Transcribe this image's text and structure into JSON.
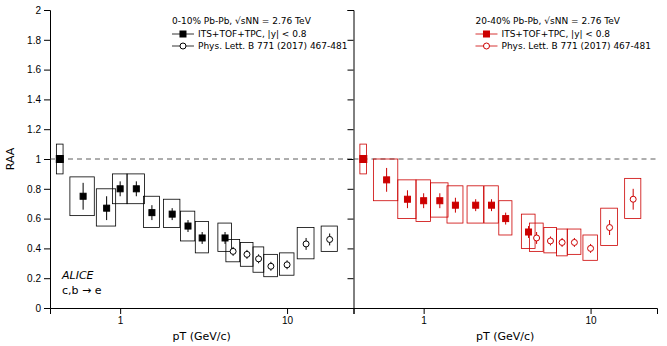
{
  "chart_data": [
    {
      "type": "scatter",
      "title": "0-10% Pb-Pb, √sNN = 2.76 TeV",
      "xlabel": "pT (GeV/c)",
      "ylabel": "RAA",
      "log": "x",
      "xlim": [
        0.38,
        25.0
      ],
      "ylim": [
        0,
        2.0
      ],
      "xticks": [
        1,
        10
      ],
      "yticks": [
        0,
        0.2,
        0.4,
        0.6,
        0.8,
        1,
        1.2,
        1.4,
        1.6,
        1.8,
        2
      ],
      "grid": false,
      "legend": "upper right",
      "reference_y": 1.0,
      "annotations": [
        "ALICE",
        "c,b → e"
      ],
      "series": [
        {
          "name": "ITS+TOF+TPC, |y| < 0.8",
          "color": "#000000",
          "marker": "square",
          "x": [
            0.6,
            0.83,
            1.0,
            1.25,
            1.55,
            2.05,
            2.55,
            3.1,
            4.25
          ],
          "values": [
            0.75,
            0.67,
            0.8,
            0.8,
            0.64,
            0.63,
            0.55,
            0.47,
            0.47
          ],
          "errors": [
            0.09,
            0.08,
            0.05,
            0.05,
            0.05,
            0.04,
            0.04,
            0.04,
            0.04
          ],
          "sys_x": [
            0.5,
            0.72,
            0.9,
            1.1,
            1.38,
            1.82,
            2.3,
            2.82,
            3.85
          ],
          "sys_width": [
            0.2,
            0.22,
            0.2,
            0.3,
            0.34,
            0.46,
            0.5,
            0.56,
            0.8
          ],
          "sys_low": [
            0.62,
            0.55,
            0.7,
            0.7,
            0.54,
            0.54,
            0.45,
            0.37,
            0.38
          ],
          "sys_high": [
            0.88,
            0.8,
            0.9,
            0.9,
            0.75,
            0.73,
            0.65,
            0.58,
            0.57
          ]
        },
        {
          "name": "Phys. Lett. B 771 (2017) 467-481",
          "color": "#000000",
          "marker": "open-circle",
          "x": [
            4.75,
            5.75,
            6.75,
            8.0,
            10.0,
            13.0,
            18.0
          ],
          "values": [
            0.38,
            0.36,
            0.33,
            0.28,
            0.29,
            0.43,
            0.46
          ],
          "errors": [
            0.03,
            0.03,
            0.03,
            0.03,
            0.03,
            0.04,
            0.04
          ],
          "sys_x": [
            4.3,
            5.25,
            6.25,
            7.25,
            9.0,
            11.5,
            16.0
          ],
          "sys_width": [
            0.9,
            1.0,
            1.0,
            1.5,
            2.0,
            3.0,
            4.0
          ],
          "sys_low": [
            0.31,
            0.28,
            0.24,
            0.21,
            0.22,
            0.33,
            0.38
          ],
          "sys_high": [
            0.46,
            0.44,
            0.41,
            0.36,
            0.37,
            0.54,
            0.55
          ]
        }
      ],
      "normalization": {
        "x": 0.435,
        "y": 1.0,
        "x_start": 0.415,
        "width": 0.04,
        "low": 0.9,
        "high": 1.1,
        "color": "#000000"
      }
    },
    {
      "type": "scatter",
      "title": "20-40% Pb-Pb, √sNN = 2.76 TeV",
      "xlabel": "pT (GeV/c)",
      "log": "x",
      "xlim": [
        0.38,
        25.0
      ],
      "ylim": [
        0,
        2.0
      ],
      "xticks": [
        1,
        10
      ],
      "yticks": [
        0,
        0.2,
        0.4,
        0.6,
        0.8,
        1,
        1.2,
        1.4,
        1.6,
        1.8,
        2
      ],
      "tick_labels": "x",
      "grid": false,
      "legend": "upper right",
      "reference_y": 1.0,
      "series": [
        {
          "name": "ITS+TOF+TPC, |y| < 0.8",
          "color": "#cc0000",
          "marker": "square",
          "x": [
            0.6,
            0.8,
            1.0,
            1.25,
            1.55,
            2.05,
            2.55,
            3.1,
            4.25
          ],
          "values": [
            0.86,
            0.73,
            0.72,
            0.72,
            0.69,
            0.69,
            0.69,
            0.6,
            0.51
          ],
          "errors": [
            0.08,
            0.06,
            0.05,
            0.05,
            0.05,
            0.04,
            0.04,
            0.04,
            0.04
          ],
          "sys_x": [
            0.5,
            0.7,
            0.9,
            1.1,
            1.38,
            1.82,
            2.3,
            2.82,
            3.85
          ],
          "sys_width": [
            0.2,
            0.2,
            0.2,
            0.3,
            0.34,
            0.46,
            0.5,
            0.56,
            0.8
          ],
          "sys_low": [
            0.72,
            0.6,
            0.58,
            0.61,
            0.57,
            0.57,
            0.57,
            0.49,
            0.4
          ],
          "sys_high": [
            1.0,
            0.86,
            0.86,
            0.84,
            0.82,
            0.82,
            0.82,
            0.72,
            0.63
          ]
        },
        {
          "name": "Phys. Lett. B 771 (2017) 467-481",
          "color": "#cc0000",
          "marker": "open-circle",
          "x": [
            4.75,
            5.75,
            6.75,
            8.0,
            10.0,
            13.0,
            18.0
          ],
          "values": [
            0.47,
            0.45,
            0.44,
            0.44,
            0.4,
            0.54,
            0.73
          ],
          "errors": [
            0.04,
            0.03,
            0.03,
            0.03,
            0.03,
            0.05,
            0.07
          ],
          "sys_x": [
            4.3,
            5.25,
            6.25,
            7.25,
            9.0,
            11.5,
            16.0
          ],
          "sys_width": [
            0.9,
            1.0,
            1.0,
            1.5,
            2.0,
            3.0,
            4.0
          ],
          "sys_low": [
            0.38,
            0.37,
            0.35,
            0.36,
            0.32,
            0.42,
            0.6
          ],
          "sys_high": [
            0.57,
            0.54,
            0.53,
            0.53,
            0.49,
            0.67,
            0.87
          ]
        }
      ],
      "normalization": {
        "x": 0.435,
        "y": 1.0,
        "x_start": 0.415,
        "width": 0.04,
        "low": 0.9,
        "high": 1.1,
        "color": "#cc0000"
      }
    }
  ]
}
